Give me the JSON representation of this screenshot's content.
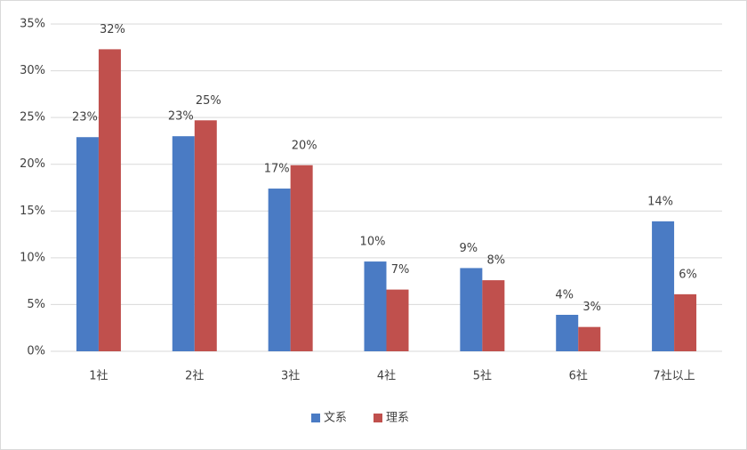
{
  "chart_data": {
    "type": "bar",
    "categories": [
      "1社",
      "2社",
      "3社",
      "4社",
      "5社",
      "6社",
      "7社以上"
    ],
    "series": [
      {
        "name": "文系",
        "color": "#4a7bc4",
        "values": [
          22.9,
          23.0,
          17.4,
          9.6,
          8.9,
          3.9,
          13.9
        ],
        "value_labels": [
          "23%",
          "23%",
          "17%",
          "10%",
          "9%",
          "4%",
          "14%"
        ]
      },
      {
        "name": "理系",
        "color": "#c0504d",
        "values": [
          32.3,
          24.7,
          19.9,
          6.6,
          7.6,
          2.6,
          6.1
        ],
        "value_labels": [
          "32%",
          "25%",
          "20%",
          "7%",
          "8%",
          "3%",
          "6%"
        ]
      }
    ],
    "ylim": [
      0,
      35
    ],
    "yticks": [
      {
        "value": 0,
        "label": "0%"
      },
      {
        "value": 5,
        "label": "5%"
      },
      {
        "value": 10,
        "label": "10%"
      },
      {
        "value": 15,
        "label": "15%"
      },
      {
        "value": 20,
        "label": "20%"
      },
      {
        "value": 25,
        "label": "25%"
      },
      {
        "value": 30,
        "label": "30%"
      },
      {
        "value": 35,
        "label": "35%"
      }
    ],
    "grid": true,
    "legend": "bottom"
  }
}
